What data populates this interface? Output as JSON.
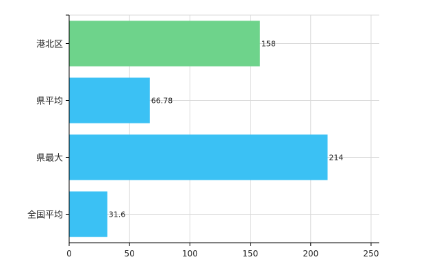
{
  "chart_data": {
    "type": "bar",
    "orientation": "horizontal",
    "categories": [
      "港北区",
      "県平均",
      "県最大",
      "全国平均"
    ],
    "values": [
      158,
      66.78,
      214,
      31.6
    ],
    "value_labels": [
      "158",
      "66.78",
      "214",
      "31.6"
    ],
    "bar_colors": [
      "#6ed38b",
      "#3bc1f4",
      "#3bc1f4",
      "#3bc1f4"
    ],
    "xlim": [
      0,
      250
    ],
    "x_ticks": [
      0,
      50,
      100,
      150,
      200,
      250
    ],
    "x_tick_labels": [
      "0",
      "50",
      "100",
      "150",
      "200",
      "250"
    ],
    "grid": true,
    "grid_color": "#d9d9d9",
    "axis_color": "#000000",
    "title": "",
    "xlabel": "",
    "ylabel": ""
  }
}
